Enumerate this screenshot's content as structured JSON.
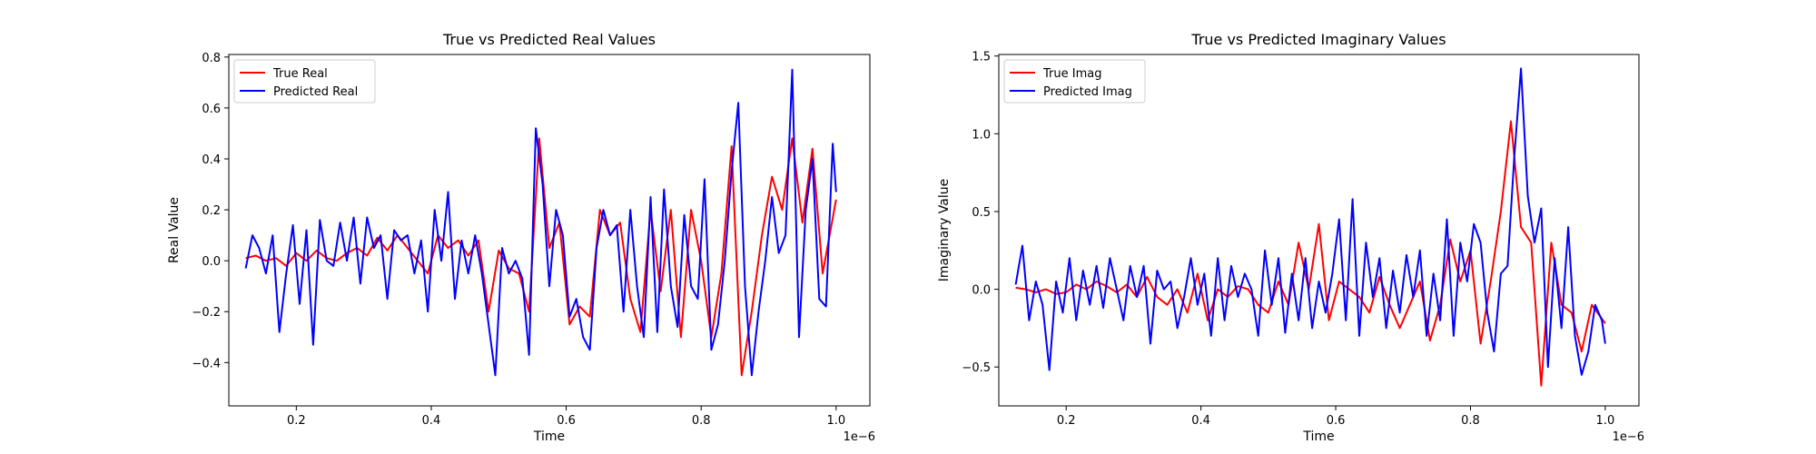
{
  "chart_data": [
    {
      "type": "line",
      "title": "True vs Predicted Real Values",
      "xlabel": "Time",
      "ylabel": "Real Value",
      "x_offset_label": "1e−6",
      "xlim": [
        0.1,
        1.05
      ],
      "ylim": [
        -0.57,
        0.81
      ],
      "x_ticks": [
        0.2,
        0.4,
        0.6,
        0.8,
        1.0
      ],
      "x_tick_labels": [
        "0.2",
        "0.4",
        "0.6",
        "0.8",
        "1.0"
      ],
      "y_ticks": [
        -0.4,
        -0.2,
        0.0,
        0.2,
        0.4,
        0.6,
        0.8
      ],
      "y_tick_labels": [
        "−0.4",
        "−0.2",
        "0.0",
        "0.2",
        "0.4",
        "0.6",
        "0.8"
      ],
      "grid": false,
      "legend_position": "top-left",
      "series": [
        {
          "name": "True Real",
          "color": "#ff0000",
          "x": [
            0.125,
            0.14,
            0.155,
            0.17,
            0.185,
            0.2,
            0.215,
            0.23,
            0.245,
            0.26,
            0.275,
            0.29,
            0.305,
            0.32,
            0.335,
            0.35,
            0.365,
            0.38,
            0.395,
            0.41,
            0.425,
            0.44,
            0.455,
            0.47,
            0.485,
            0.5,
            0.515,
            0.53,
            0.545,
            0.56,
            0.575,
            0.59,
            0.605,
            0.62,
            0.635,
            0.65,
            0.665,
            0.68,
            0.695,
            0.71,
            0.725,
            0.74,
            0.755,
            0.77,
            0.785,
            0.8,
            0.815,
            0.83,
            0.845,
            0.86,
            0.875,
            0.89,
            0.905,
            0.92,
            0.935,
            0.95,
            0.965,
            0.98,
            1.0
          ],
          "y": [
            0.01,
            0.02,
            0.0,
            0.01,
            -0.02,
            0.03,
            0.0,
            0.04,
            0.01,
            0.0,
            0.03,
            0.05,
            0.02,
            0.09,
            0.04,
            0.1,
            0.05,
            0.0,
            -0.05,
            0.1,
            0.05,
            0.08,
            0.02,
            0.08,
            -0.2,
            0.04,
            -0.03,
            -0.05,
            -0.2,
            0.48,
            0.05,
            0.15,
            -0.25,
            -0.18,
            -0.22,
            0.2,
            0.1,
            0.15,
            -0.15,
            -0.28,
            0.2,
            -0.12,
            0.2,
            -0.3,
            0.2,
            0.0,
            -0.3,
            -0.05,
            0.45,
            -0.45,
            -0.2,
            0.1,
            0.33,
            0.2,
            0.48,
            0.15,
            0.44,
            -0.05,
            0.24
          ]
        },
        {
          "name": "Predicted Real",
          "color": "#0000ff",
          "x": [
            0.125,
            0.135,
            0.145,
            0.155,
            0.165,
            0.175,
            0.185,
            0.195,
            0.205,
            0.215,
            0.225,
            0.235,
            0.245,
            0.255,
            0.265,
            0.275,
            0.285,
            0.295,
            0.305,
            0.315,
            0.325,
            0.335,
            0.345,
            0.355,
            0.365,
            0.375,
            0.385,
            0.395,
            0.405,
            0.415,
            0.425,
            0.435,
            0.445,
            0.455,
            0.465,
            0.475,
            0.485,
            0.495,
            0.505,
            0.515,
            0.525,
            0.535,
            0.545,
            0.555,
            0.565,
            0.575,
            0.585,
            0.595,
            0.605,
            0.615,
            0.625,
            0.635,
            0.645,
            0.655,
            0.665,
            0.675,
            0.685,
            0.695,
            0.705,
            0.715,
            0.725,
            0.735,
            0.745,
            0.755,
            0.765,
            0.775,
            0.785,
            0.795,
            0.805,
            0.815,
            0.825,
            0.835,
            0.845,
            0.855,
            0.865,
            0.875,
            0.885,
            0.895,
            0.905,
            0.915,
            0.925,
            0.935,
            0.945,
            0.955,
            0.965,
            0.975,
            0.985,
            0.995,
            1.0
          ],
          "y": [
            -0.03,
            0.1,
            0.05,
            -0.05,
            0.1,
            -0.28,
            -0.05,
            0.14,
            -0.17,
            0.12,
            -0.33,
            0.16,
            0.0,
            -0.02,
            0.15,
            0.0,
            0.17,
            -0.09,
            0.17,
            0.05,
            0.1,
            -0.15,
            0.12,
            0.08,
            0.1,
            -0.05,
            0.08,
            -0.2,
            0.2,
            0.0,
            0.27,
            -0.15,
            0.08,
            -0.05,
            0.1,
            -0.05,
            -0.25,
            -0.45,
            0.05,
            -0.05,
            0.0,
            -0.07,
            -0.37,
            0.52,
            0.3,
            -0.1,
            0.2,
            0.1,
            -0.22,
            -0.15,
            -0.3,
            -0.35,
            0.05,
            0.2,
            0.1,
            0.14,
            -0.2,
            0.2,
            -0.1,
            -0.3,
            0.25,
            -0.28,
            0.28,
            -0.1,
            -0.26,
            0.18,
            -0.1,
            -0.15,
            0.32,
            -0.35,
            -0.25,
            0.0,
            0.35,
            0.62,
            -0.1,
            -0.45,
            -0.2,
            0.0,
            0.25,
            0.03,
            0.1,
            0.75,
            -0.3,
            0.2,
            0.4,
            -0.15,
            -0.18,
            0.46,
            0.27
          ]
        }
      ]
    },
    {
      "type": "line",
      "title": "True vs Predicted Imaginary Values",
      "xlabel": "Time",
      "ylabel": "Imaginary Value",
      "x_offset_label": "1e−6",
      "xlim": [
        0.1,
        1.05
      ],
      "ylim": [
        -0.75,
        1.51
      ],
      "x_ticks": [
        0.2,
        0.4,
        0.6,
        0.8,
        1.0
      ],
      "x_tick_labels": [
        "0.2",
        "0.4",
        "0.6",
        "0.8",
        "1.0"
      ],
      "y_ticks": [
        -0.5,
        0.0,
        0.5,
        1.0,
        1.5
      ],
      "y_tick_labels": [
        "−0.5",
        "0.0",
        "0.5",
        "1.0",
        "1.5"
      ],
      "grid": false,
      "legend_position": "top-left",
      "series": [
        {
          "name": "True Imag",
          "color": "#ff0000",
          "x": [
            0.125,
            0.14,
            0.155,
            0.17,
            0.185,
            0.2,
            0.215,
            0.23,
            0.245,
            0.26,
            0.275,
            0.29,
            0.305,
            0.32,
            0.335,
            0.35,
            0.365,
            0.38,
            0.395,
            0.41,
            0.425,
            0.44,
            0.455,
            0.47,
            0.485,
            0.5,
            0.515,
            0.53,
            0.545,
            0.56,
            0.575,
            0.59,
            0.605,
            0.62,
            0.635,
            0.65,
            0.665,
            0.68,
            0.695,
            0.71,
            0.725,
            0.74,
            0.755,
            0.77,
            0.785,
            0.8,
            0.815,
            0.83,
            0.845,
            0.86,
            0.875,
            0.89,
            0.905,
            0.92,
            0.935,
            0.95,
            0.965,
            0.98,
            1.0
          ],
          "y": [
            0.01,
            0.0,
            -0.02,
            0.0,
            -0.03,
            -0.02,
            0.03,
            0.0,
            0.05,
            0.02,
            -0.02,
            0.03,
            -0.05,
            0.08,
            -0.05,
            -0.1,
            0.0,
            -0.15,
            0.1,
            -0.2,
            0.0,
            -0.05,
            0.02,
            0.0,
            -0.1,
            -0.15,
            0.05,
            -0.1,
            0.3,
            0.0,
            0.42,
            -0.2,
            0.05,
            0.0,
            -0.05,
            -0.15,
            0.08,
            -0.1,
            -0.25,
            -0.1,
            0.05,
            -0.33,
            -0.1,
            0.32,
            0.05,
            0.25,
            -0.35,
            0.05,
            0.5,
            1.08,
            0.4,
            0.3,
            -0.62,
            0.3,
            -0.1,
            -0.15,
            -0.4,
            -0.1,
            -0.22
          ]
        },
        {
          "name": "Predicted Imag",
          "color": "#0000ff",
          "x": [
            0.125,
            0.135,
            0.145,
            0.155,
            0.165,
            0.175,
            0.185,
            0.195,
            0.205,
            0.215,
            0.225,
            0.235,
            0.245,
            0.255,
            0.265,
            0.275,
            0.285,
            0.295,
            0.305,
            0.315,
            0.325,
            0.335,
            0.345,
            0.355,
            0.365,
            0.375,
            0.385,
            0.395,
            0.405,
            0.415,
            0.425,
            0.435,
            0.445,
            0.455,
            0.465,
            0.475,
            0.485,
            0.495,
            0.505,
            0.515,
            0.525,
            0.535,
            0.545,
            0.555,
            0.565,
            0.575,
            0.585,
            0.595,
            0.605,
            0.615,
            0.625,
            0.635,
            0.645,
            0.655,
            0.665,
            0.675,
            0.685,
            0.695,
            0.705,
            0.715,
            0.725,
            0.735,
            0.745,
            0.755,
            0.765,
            0.775,
            0.785,
            0.795,
            0.805,
            0.815,
            0.825,
            0.835,
            0.845,
            0.855,
            0.865,
            0.875,
            0.885,
            0.895,
            0.905,
            0.915,
            0.925,
            0.935,
            0.945,
            0.955,
            0.965,
            0.975,
            0.985,
            0.995,
            1.0
          ],
          "y": [
            0.03,
            0.28,
            -0.2,
            0.05,
            -0.1,
            -0.52,
            0.05,
            -0.15,
            0.2,
            -0.2,
            0.12,
            -0.1,
            0.15,
            -0.12,
            0.2,
            0.0,
            -0.2,
            0.15,
            -0.05,
            0.15,
            -0.35,
            0.12,
            0.0,
            0.05,
            -0.25,
            -0.05,
            0.2,
            -0.1,
            0.1,
            -0.3,
            0.2,
            -0.2,
            0.15,
            -0.05,
            0.1,
            0.0,
            -0.3,
            0.25,
            -0.1,
            0.2,
            -0.28,
            0.1,
            -0.2,
            0.2,
            -0.25,
            0.05,
            -0.15,
            0.1,
            0.45,
            -0.2,
            0.58,
            -0.3,
            0.3,
            -0.05,
            0.2,
            -0.25,
            0.12,
            -0.15,
            0.22,
            -0.05,
            0.25,
            -0.3,
            0.1,
            -0.2,
            0.45,
            -0.3,
            0.3,
            0.05,
            0.42,
            0.3,
            -0.15,
            -0.4,
            0.1,
            0.15,
            0.85,
            1.42,
            0.6,
            0.3,
            0.52,
            -0.5,
            0.2,
            -0.25,
            0.4,
            -0.3,
            -0.55,
            -0.4,
            -0.1,
            -0.2,
            -0.35
          ]
        }
      ]
    }
  ]
}
